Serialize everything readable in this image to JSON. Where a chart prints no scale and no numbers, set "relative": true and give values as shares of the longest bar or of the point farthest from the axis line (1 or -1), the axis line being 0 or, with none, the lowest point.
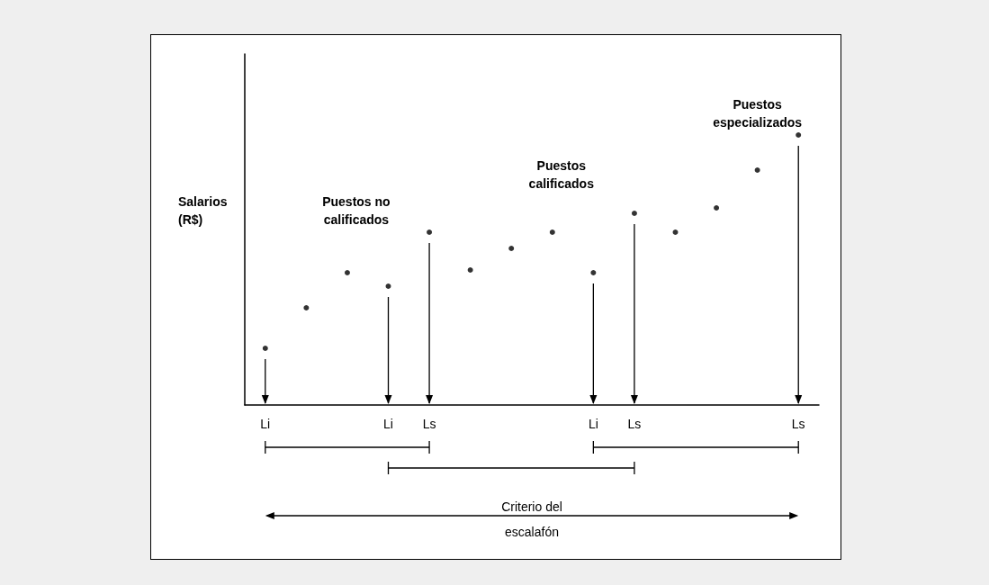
{
  "chart_data": {
    "type": "scatter",
    "relative": true,
    "ylabel": "Salarios\n(R$)",
    "categories": [
      "Li",
      null,
      null,
      "Li",
      "Ls",
      null,
      null,
      null,
      "Li",
      "Ls",
      null,
      null,
      null,
      "Ls"
    ],
    "values": [
      0.21,
      0.36,
      0.49,
      0.44,
      0.64,
      0.5,
      0.58,
      0.64,
      0.49,
      0.71,
      0.64,
      0.73,
      0.87,
      1.0
    ],
    "color": "#000000",
    "marker": "circle",
    "annotations": [
      "Puestos no\ncalificados",
      "Puestos\ncalificados",
      "Puestos\nespecializados",
      "Criterio del\nescalafón"
    ]
  }
}
